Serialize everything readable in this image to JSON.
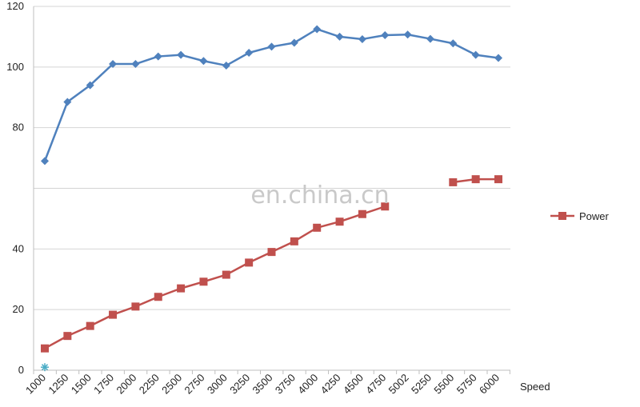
{
  "chart_data": {
    "type": "line",
    "x": [
      1000,
      1250,
      1500,
      1750,
      2000,
      2250,
      2500,
      2750,
      3000,
      3250,
      3500,
      3750,
      4000,
      4250,
      4500,
      4750,
      5002,
      5250,
      5500,
      5750,
      6000
    ],
    "x_tick_labels": [
      "1000",
      "1250",
      "1500",
      "1750",
      "2000",
      "2250",
      "2500",
      "2750",
      "3000",
      "3250",
      "3500",
      "3750",
      "4000",
      "4250",
      "4500",
      "4750",
      "5002",
      "5250",
      "5500",
      "5750",
      "6000"
    ],
    "xlabel": "Speed",
    "ylabel": "",
    "title": "",
    "ylim": [
      0,
      120
    ],
    "y_ticks": [
      "0",
      "20",
      "40",
      "",
      "80",
      "100",
      "120"
    ],
    "grid": true,
    "legend_position": "right",
    "watermark": "en.china.cn",
    "series": [
      {
        "name": "",
        "color": "#4f81bd",
        "marker": "diamond",
        "values": [
          69,
          88.5,
          94,
          101,
          101,
          103.5,
          104,
          102,
          100.5,
          104.7,
          106.7,
          108,
          112.5,
          110,
          109.2,
          110.5,
          110.7,
          109.3,
          107.8,
          104,
          103
        ]
      },
      {
        "name": "Power",
        "color": "#c0504d",
        "marker": "square",
        "values": [
          7.2,
          11.3,
          14.6,
          18.3,
          21,
          24.2,
          27,
          29.2,
          31.5,
          35.5,
          39,
          42.5,
          47,
          49,
          51.5,
          54,
          null,
          null,
          62,
          63,
          63
        ]
      }
    ],
    "extra_marker": {
      "x": 1000,
      "y": 1,
      "shape": "star",
      "color": "#4bacc6"
    }
  }
}
